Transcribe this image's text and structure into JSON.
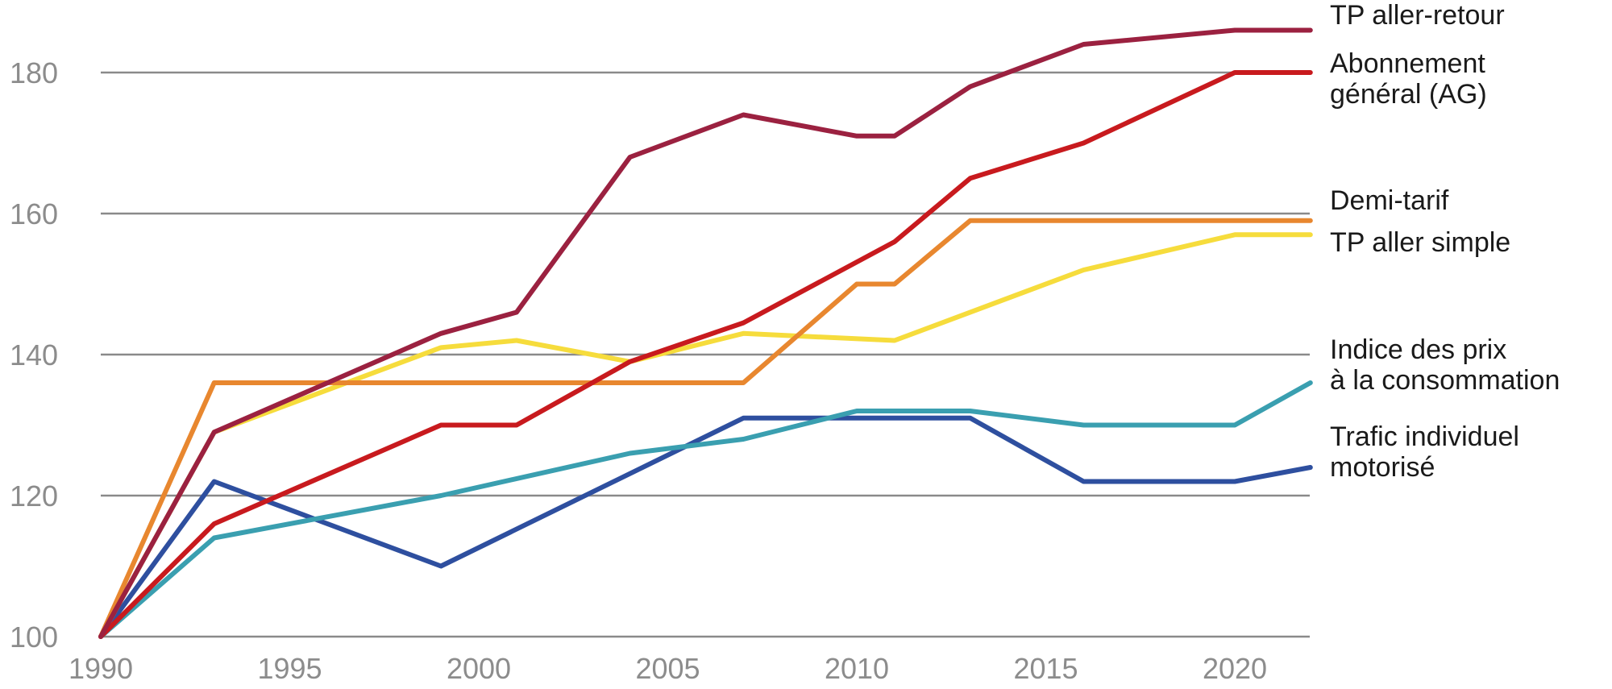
{
  "chart_data": {
    "type": "line",
    "title": "",
    "xlabel": "",
    "ylabel": "",
    "xlim": [
      1990,
      2022
    ],
    "ylim": [
      100,
      186
    ],
    "x_ticks": [
      1990,
      1995,
      2000,
      2005,
      2010,
      2015,
      2020
    ],
    "y_ticks": [
      100,
      120,
      140,
      160,
      180
    ],
    "grid": "horizontal",
    "legend": "direct labels at right end of lines",
    "series": [
      {
        "name": "TP aller-retour",
        "label_lines": [
          "TP aller-retour"
        ],
        "color": "#9b2140",
        "x": [
          1990,
          1993,
          1999,
          2001,
          2004,
          2007,
          2010,
          2011,
          2013,
          2016,
          2020,
          2022
        ],
        "values": [
          100,
          129,
          143,
          146,
          168,
          174,
          171,
          171,
          178,
          184,
          186,
          186
        ]
      },
      {
        "name": "Abonnement général (AG)",
        "label_lines": [
          "Abonnement",
          "général (AG)"
        ],
        "color": "#c81a1e",
        "x": [
          1990,
          1993,
          1999,
          2001,
          2004,
          2007,
          2011,
          2013,
          2016,
          2020,
          2022
        ],
        "values": [
          100,
          116,
          130,
          130,
          139,
          144.5,
          156,
          165,
          170,
          180,
          180
        ]
      },
      {
        "name": "Demi-tarif",
        "label_lines": [
          "Demi-tarif"
        ],
        "color": "#e8872f",
        "x": [
          1990,
          1993,
          2007,
          2010,
          2011,
          2013,
          2022
        ],
        "values": [
          100,
          136,
          136,
          150,
          150,
          159,
          159
        ]
      },
      {
        "name": "TP aller simple",
        "label_lines": [
          "TP aller simple"
        ],
        "color": "#f6dc3c",
        "x": [
          1990,
          1993,
          1999,
          2001,
          2004,
          2007,
          2011,
          2016,
          2020,
          2022
        ],
        "values": [
          100,
          129,
          141,
          142,
          139,
          143,
          142,
          152,
          157,
          157
        ]
      },
      {
        "name": "Indice des prix à la consommation",
        "label_lines": [
          "Indice des prix",
          "à la consommation"
        ],
        "color": "#3a9fb0",
        "x": [
          1990,
          1993,
          1999,
          2004,
          2007,
          2010,
          2013,
          2016,
          2020,
          2022
        ],
        "values": [
          100,
          114,
          120,
          126,
          128,
          132,
          132,
          130,
          130,
          136
        ]
      },
      {
        "name": "Trafic individuel motorisé",
        "label_lines": [
          "Trafic individuel",
          "motorisé"
        ],
        "color": "#2e4f9f",
        "x": [
          1990,
          1993,
          1999,
          2007,
          2013,
          2016,
          2020,
          2022
        ],
        "values": [
          100,
          122,
          110,
          131,
          131,
          122,
          122,
          124
        ]
      }
    ]
  }
}
